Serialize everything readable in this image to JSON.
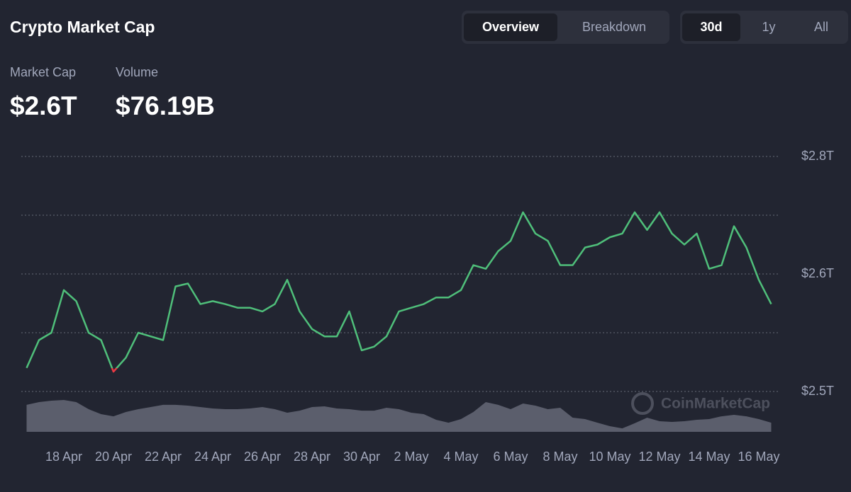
{
  "header": {
    "title": "Crypto Market Cap",
    "view_tabs": [
      {
        "label": "Overview",
        "selected": true
      },
      {
        "label": "Breakdown",
        "selected": false
      }
    ],
    "range_tabs": [
      {
        "label": "30d",
        "selected": true
      },
      {
        "label": "1y",
        "selected": false
      },
      {
        "label": "All",
        "selected": false
      }
    ],
    "stats": [
      {
        "label": "Market Cap",
        "value": "$2.6T"
      },
      {
        "label": "Volume",
        "value": "$76.19B"
      }
    ]
  },
  "watermark": "CoinMarketCap",
  "chart_data": {
    "type": "line",
    "categories": [
      null,
      null,
      null,
      "18 Apr",
      null,
      null,
      null,
      "20 Apr",
      null,
      null,
      null,
      "22 Apr",
      null,
      null,
      null,
      "24 Apr",
      null,
      null,
      null,
      "26 Apr",
      null,
      null,
      null,
      "28 Apr",
      null,
      null,
      null,
      "30 Apr",
      null,
      null,
      null,
      "2 May",
      null,
      null,
      null,
      "4 May",
      null,
      null,
      null,
      "6 May",
      null,
      null,
      null,
      "8 May",
      null,
      null,
      null,
      "10 May",
      null,
      null,
      null,
      "12 May",
      null,
      null,
      null,
      "14 May",
      null,
      null,
      null,
      "16 May",
      null
    ],
    "series": [
      {
        "name": "Market Cap",
        "color": "#4fbf7a",
        "below_color": "#ea3943",
        "values": [
          2.512,
          2.55,
          2.56,
          2.618,
          2.603,
          2.56,
          2.55,
          2.507,
          2.526,
          2.56,
          2.555,
          2.55,
          2.623,
          2.627,
          2.599,
          2.603,
          2.599,
          2.594,
          2.594,
          2.589,
          2.599,
          2.632,
          2.589,
          2.565,
          2.555,
          2.555,
          2.589,
          2.536,
          2.541,
          2.555,
          2.589,
          2.594,
          2.599,
          2.608,
          2.608,
          2.618,
          2.652,
          2.647,
          2.671,
          2.685,
          2.724,
          2.695,
          2.685,
          2.652,
          2.652,
          2.676,
          2.68,
          2.69,
          2.695,
          2.724,
          2.7,
          2.724,
          2.695,
          2.68,
          2.695,
          2.647,
          2.652,
          2.705,
          2.676,
          2.632,
          2.599
        ]
      },
      {
        "name": "Volume",
        "color": "#5b5e6c",
        "axis": "y2",
        "values": [
          224,
          247,
          259,
          265,
          247,
          188,
          147,
          129,
          165,
          188,
          206,
          224,
          224,
          218,
          206,
          194,
          188,
          188,
          194,
          206,
          188,
          159,
          176,
          206,
          212,
          194,
          188,
          176,
          176,
          200,
          188,
          159,
          147,
          100,
          76,
          106,
          165,
          247,
          224,
          188,
          235,
          218,
          188,
          200,
          118,
          106,
          76,
          47,
          29,
          71,
          118,
          88,
          82,
          88,
          100,
          106,
          129,
          141,
          129,
          106,
          76
        ]
      }
    ],
    "ylim": [
      2.48,
      2.8
    ],
    "yticks": [
      {
        "value": 2.48,
        "label": "$2.5T"
      },
      {
        "value": 2.64,
        "label": "$2.6T"
      },
      {
        "value": 2.8,
        "label": "$2.8T"
      }
    ],
    "minor_yticks": [
      2.56,
      2.72
    ],
    "y2lim": [
      0,
      300
    ],
    "grid": true
  }
}
